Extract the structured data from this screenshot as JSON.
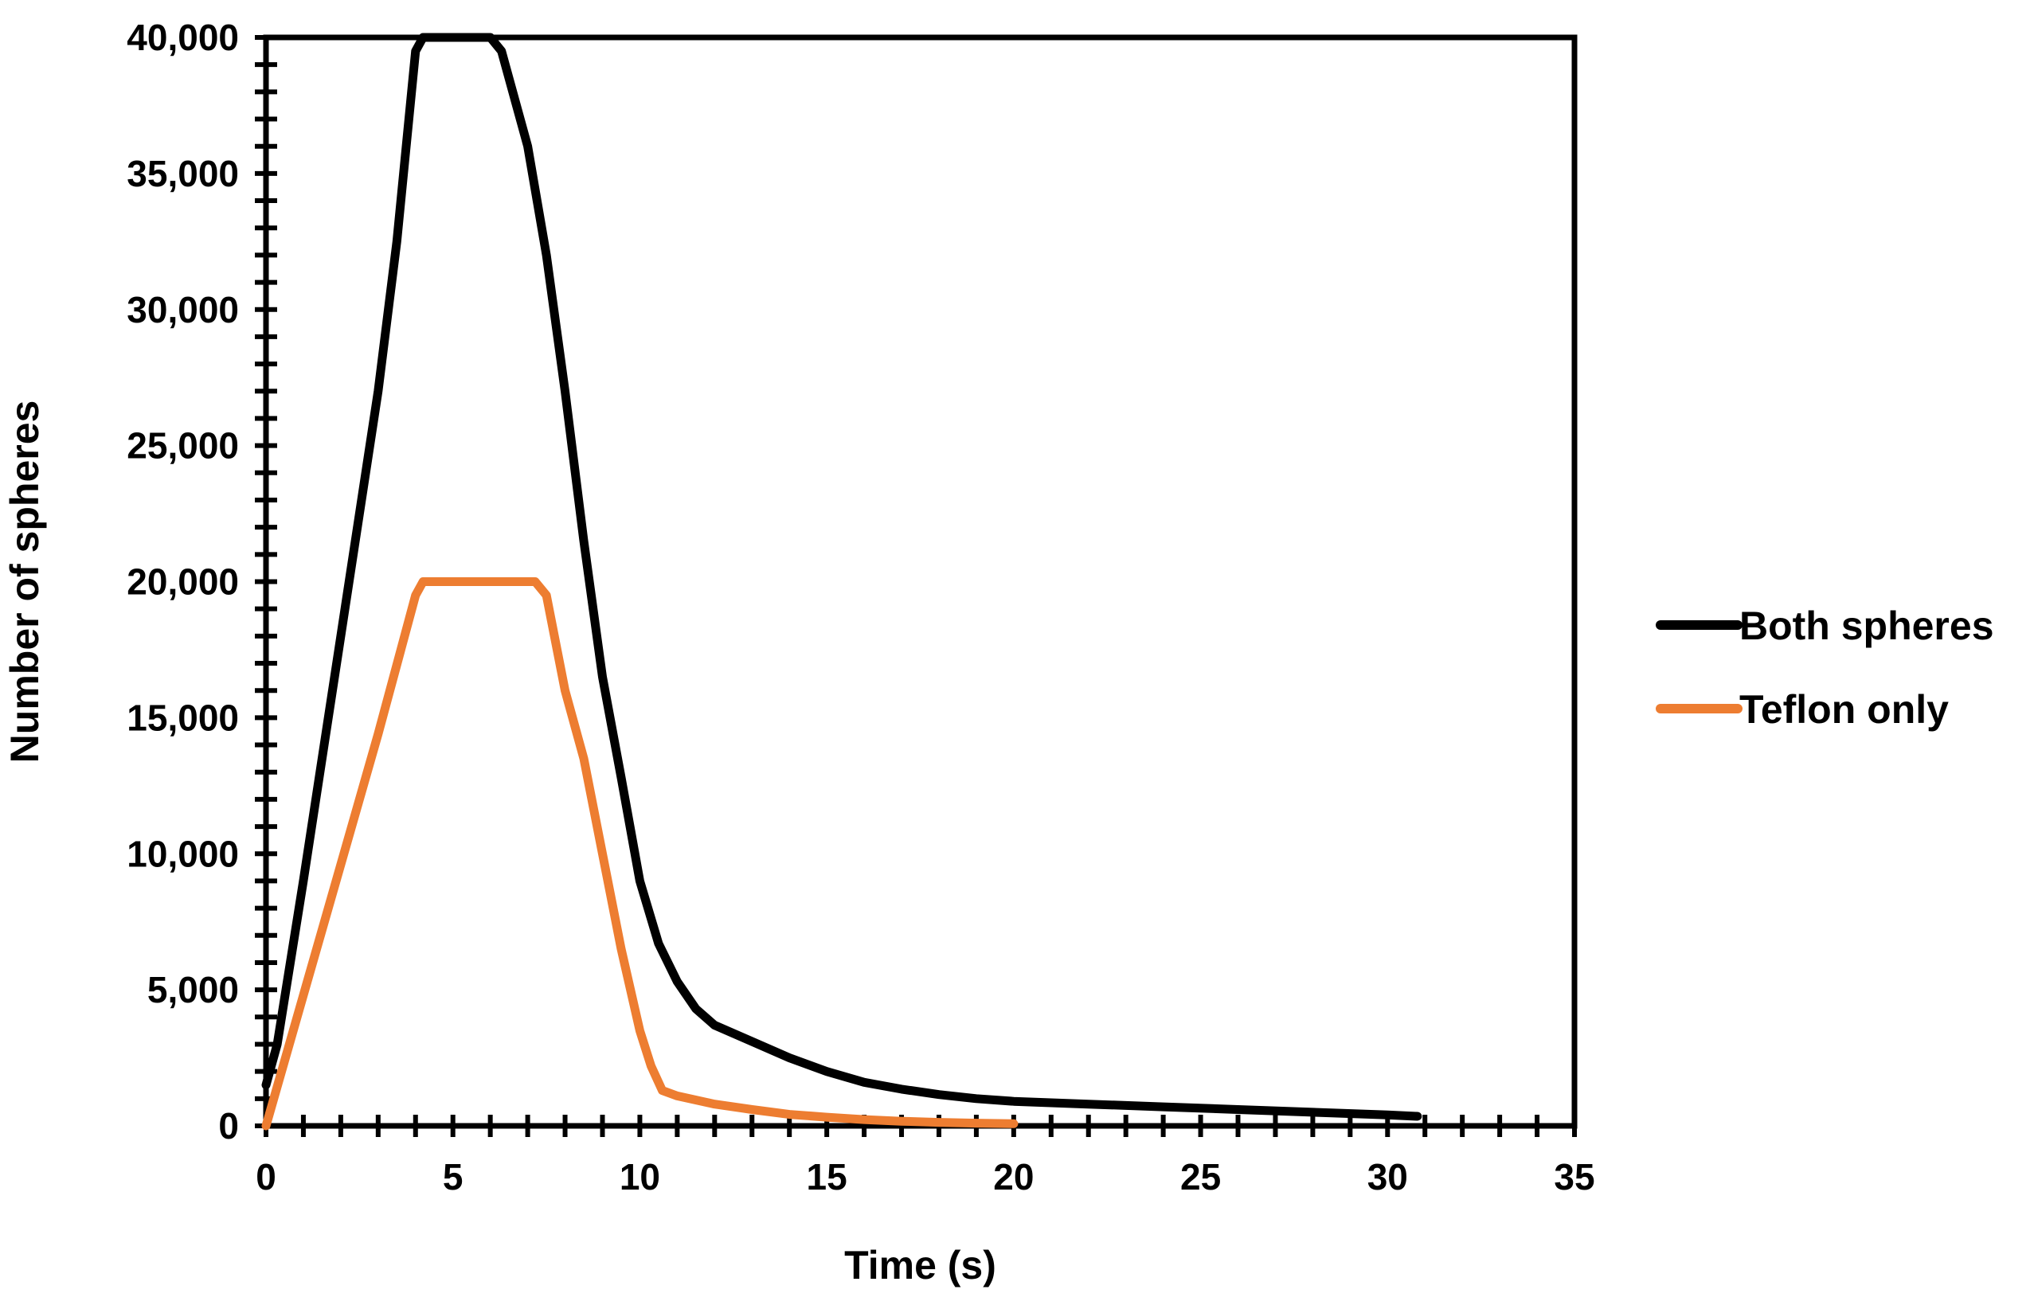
{
  "chart_data": {
    "type": "line",
    "title": "",
    "xlabel": "Time (s)",
    "ylabel": "Number of spheres",
    "xlim": [
      0,
      35
    ],
    "ylim": [
      0,
      40000
    ],
    "x_ticks": [
      0,
      5,
      10,
      15,
      20,
      25,
      30,
      35
    ],
    "x_tick_labels": [
      "0",
      "5",
      "10",
      "15",
      "20",
      "25",
      "30",
      "35"
    ],
    "y_ticks": [
      0,
      5000,
      10000,
      15000,
      20000,
      25000,
      30000,
      35000,
      40000
    ],
    "y_tick_labels": [
      "0",
      "5,000",
      "10,000",
      "15,000",
      "20,000",
      "25,000",
      "30,000",
      "35,000",
      "40,000"
    ],
    "grid": false,
    "legend_position": "right",
    "series": [
      {
        "name": "Both spheres",
        "color": "#000000",
        "points": [
          [
            0,
            1500
          ],
          [
            0.3,
            3000
          ],
          [
            1,
            9000
          ],
          [
            2,
            18000
          ],
          [
            3,
            27000
          ],
          [
            3.5,
            32500
          ],
          [
            4,
            39500
          ],
          [
            4.2,
            40000
          ],
          [
            6,
            40000
          ],
          [
            6.3,
            39500
          ],
          [
            7,
            36000
          ],
          [
            7.5,
            32000
          ],
          [
            8,
            27000
          ],
          [
            8.5,
            21500
          ],
          [
            9,
            16500
          ],
          [
            9.5,
            12800
          ],
          [
            10,
            9000
          ],
          [
            10.5,
            6700
          ],
          [
            11,
            5300
          ],
          [
            11.5,
            4300
          ],
          [
            12,
            3700
          ],
          [
            13,
            3100
          ],
          [
            14,
            2500
          ],
          [
            15,
            2000
          ],
          [
            16,
            1600
          ],
          [
            17,
            1350
          ],
          [
            18,
            1150
          ],
          [
            19,
            1000
          ],
          [
            20,
            900
          ],
          [
            22,
            800
          ],
          [
            24,
            700
          ],
          [
            26,
            600
          ],
          [
            28,
            500
          ],
          [
            30,
            400
          ],
          [
            30.8,
            350
          ]
        ]
      },
      {
        "name": "Teflon only",
        "color": "#ED7D31",
        "points": [
          [
            0,
            0
          ],
          [
            1,
            4800
          ],
          [
            2,
            9600
          ],
          [
            3,
            14400
          ],
          [
            4,
            19500
          ],
          [
            4.2,
            20000
          ],
          [
            7.2,
            20000
          ],
          [
            7.5,
            19500
          ],
          [
            8,
            16000
          ],
          [
            8.5,
            13500
          ],
          [
            9,
            10000
          ],
          [
            9.5,
            6500
          ],
          [
            10,
            3500
          ],
          [
            10.3,
            2200
          ],
          [
            10.6,
            1300
          ],
          [
            11,
            1100
          ],
          [
            12,
            800
          ],
          [
            13,
            600
          ],
          [
            14,
            420
          ],
          [
            15,
            320
          ],
          [
            16,
            230
          ],
          [
            17,
            170
          ],
          [
            18,
            130
          ],
          [
            19,
            100
          ],
          [
            20,
            80
          ]
        ]
      }
    ]
  }
}
